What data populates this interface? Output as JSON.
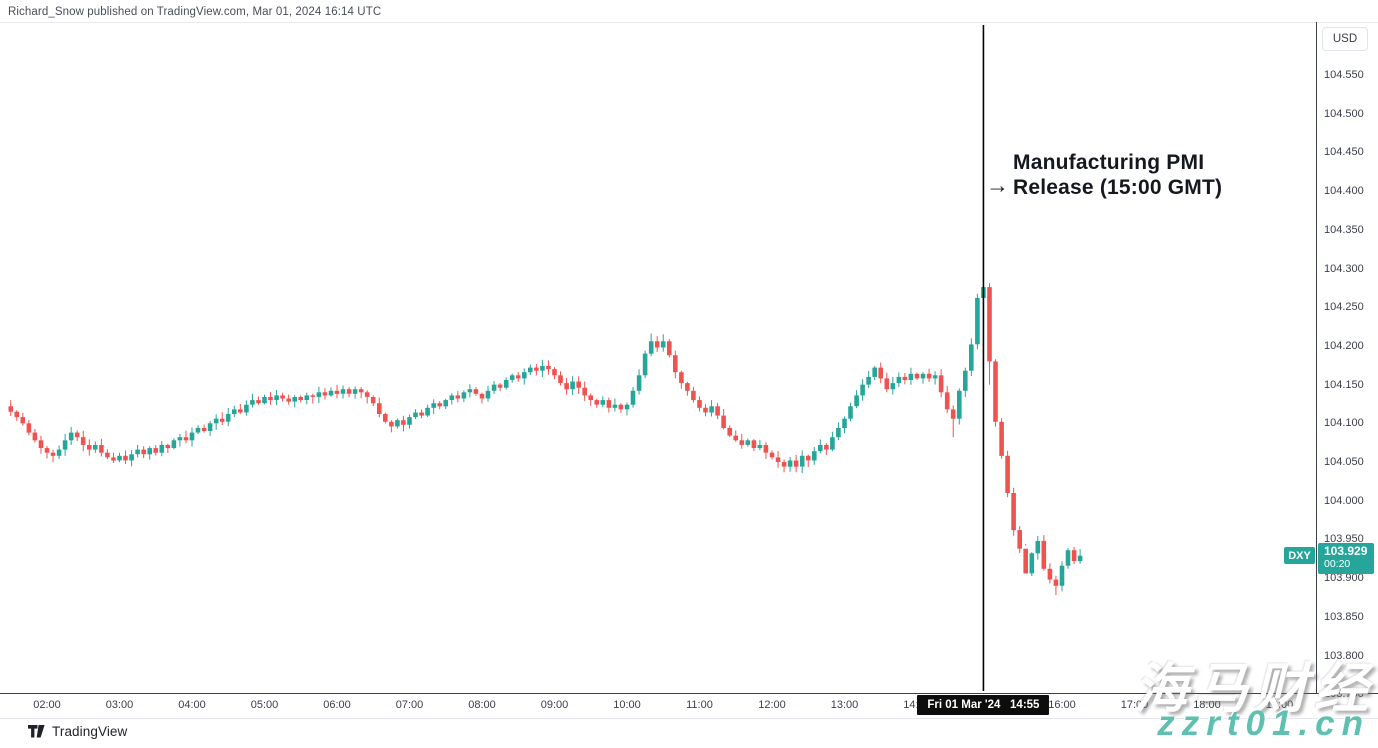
{
  "attribution": "Richard_Snow published on TradingView.com, Mar 01, 2024 16:14 UTC",
  "currency_button": "USD",
  "annotation": {
    "arrow": "→",
    "line1": "Manufacturing PMI",
    "line2": "Release (15:00 GMT)"
  },
  "symbol_tag": "DXY",
  "price_tag": {
    "price": "103.929",
    "countdown": "00:20"
  },
  "event_time_label": "Fri 01 Mar '24   14:55",
  "footer": {
    "logo_text": "TradingView"
  },
  "watermark": {
    "line1": "海马财经",
    "line2": "zzrt01.cn",
    "url_color": "#5fc0b1"
  },
  "colors": {
    "up": "#26a69a",
    "down": "#ef5350",
    "event_line": "#000000",
    "axis_text": "#3a3e4a"
  },
  "chart_data": {
    "type": "candlestick",
    "symbol": "DXY",
    "currency": "USD",
    "interval": "5m",
    "date": "Fri 01 Mar '24",
    "grid": false,
    "legend_position": "none",
    "y_axis": {
      "min": 103.75,
      "max": 104.58,
      "tick_step": 0.05,
      "ticks": [
        "104.550",
        "104.500",
        "104.450",
        "104.400",
        "104.350",
        "104.300",
        "104.250",
        "104.200",
        "104.150",
        "104.100",
        "104.050",
        "104.000",
        "103.950",
        "103.900",
        "103.850",
        "103.800",
        "103.750"
      ]
    },
    "x_ticks": [
      "02:00",
      "03:00",
      "04:00",
      "05:00",
      "06:00",
      "07:00",
      "08:00",
      "09:00",
      "10:00",
      "11:00",
      "12:00",
      "13:00",
      "14:00",
      "15:00",
      "16:00",
      "17:00",
      "18:00",
      "19:00"
    ],
    "start_time": "01:30",
    "step_minutes": 5,
    "first_open": 104.122,
    "last_price": 103.929,
    "event": {
      "time": "14:55",
      "label": "Fri 01 Mar '24   14:55",
      "annotation": "Manufacturing PMI Release (15:00 GMT)"
    },
    "closes": [
      104.115,
      104.108,
      104.1,
      104.088,
      104.078,
      104.068,
      104.062,
      104.058,
      104.066,
      104.078,
      104.088,
      104.082,
      104.072,
      104.066,
      104.072,
      104.062,
      104.056,
      104.052,
      104.058,
      104.052,
      104.06,
      104.066,
      104.06,
      104.068,
      104.062,
      104.072,
      104.068,
      104.078,
      104.082,
      104.078,
      104.088,
      104.094,
      104.09,
      104.1,
      104.106,
      104.102,
      104.112,
      104.118,
      104.114,
      104.124,
      104.13,
      104.126,
      104.134,
      104.13,
      104.136,
      104.132,
      104.128,
      104.134,
      104.13,
      104.136,
      104.134,
      104.14,
      104.136,
      104.142,
      104.138,
      104.144,
      104.138,
      104.144,
      104.14,
      104.134,
      104.126,
      104.112,
      104.102,
      104.096,
      104.104,
      104.098,
      104.108,
      104.114,
      104.11,
      104.12,
      104.126,
      104.122,
      104.13,
      104.136,
      104.132,
      104.14,
      104.144,
      104.138,
      104.132,
      104.142,
      104.15,
      104.146,
      104.156,
      104.162,
      104.158,
      104.166,
      104.172,
      104.168,
      104.174,
      104.17,
      104.162,
      104.152,
      104.144,
      104.154,
      104.146,
      104.136,
      104.13,
      104.124,
      104.13,
      104.12,
      104.124,
      104.118,
      104.124,
      104.142,
      104.162,
      104.19,
      104.206,
      104.198,
      104.206,
      104.188,
      104.166,
      104.152,
      104.142,
      104.13,
      104.12,
      104.114,
      104.122,
      104.11,
      104.094,
      104.084,
      104.078,
      104.072,
      104.078,
      104.068,
      104.072,
      104.062,
      104.056,
      104.05,
      104.044,
      104.052,
      104.044,
      104.058,
      104.052,
      104.064,
      104.072,
      104.066,
      104.082,
      104.094,
      104.106,
      104.122,
      104.136,
      104.15,
      104.16,
      104.172,
      104.158,
      104.144,
      104.152,
      104.16,
      104.156,
      104.164,
      104.158,
      104.164,
      104.158,
      104.162,
      104.14,
      104.118,
      104.106,
      104.142,
      104.168,
      104.202,
      104.262,
      104.276,
      104.18,
      104.102,
      104.058,
      104.01,
      103.962,
      103.938,
      103.906,
      103.932,
      103.948,
      103.912,
      103.898,
      103.89,
      103.916,
      103.936,
      103.922,
      103.929
    ],
    "wick_overrides": {
      "106": {
        "high": 104.216
      },
      "108": {
        "high": 104.215
      },
      "156": {
        "low": 104.082
      },
      "161": {
        "high": 104.292
      },
      "162": {
        "low": 104.15
      },
      "168": {
        "low": 103.942
      },
      "173": {
        "low": 103.878
      }
    }
  }
}
